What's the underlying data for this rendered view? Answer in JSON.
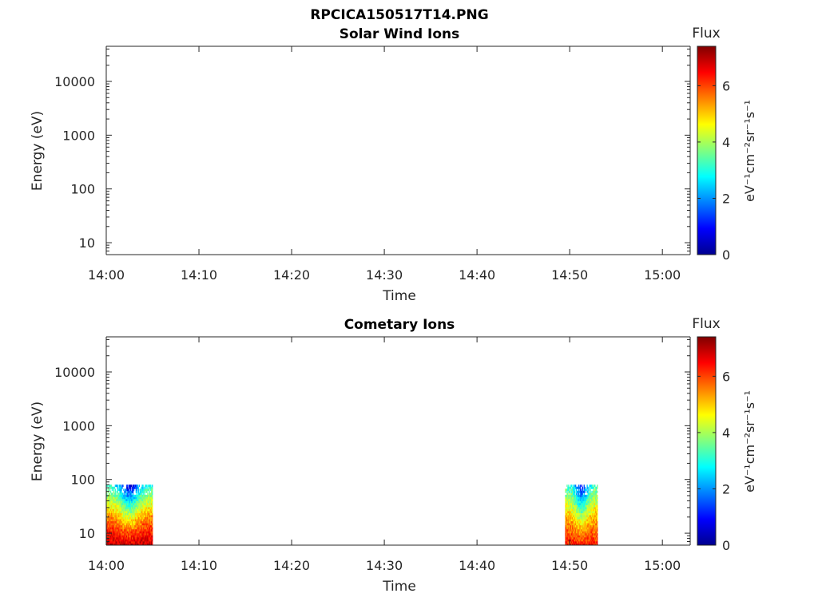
{
  "figure_title": "RPCICA150517T14.PNG",
  "chart_data": [
    {
      "type": "heatmap",
      "title": "Solar Wind Ions",
      "xlabel": "Time",
      "ylabel": "Energy (eV)",
      "x_range": [
        "14:00",
        "15:03"
      ],
      "x_ticks": [
        "14:00",
        "14:10",
        "14:20",
        "14:30",
        "14:40",
        "14:50",
        "15:00"
      ],
      "y_scale": "log",
      "y_range": [
        6,
        45000
      ],
      "y_ticks": [
        "10",
        "100",
        "1000",
        "10000"
      ],
      "colorbar": {
        "label": "Flux",
        "unit_label": "eV⁻¹cm⁻²sr⁻¹s⁻¹",
        "range": [
          0,
          7.4
        ],
        "ticks": [
          "0",
          "2",
          "4",
          "6"
        ]
      },
      "regions": []
    },
    {
      "type": "heatmap",
      "title": "Cometary Ions",
      "xlabel": "Time",
      "ylabel": "Energy (eV)",
      "x_range": [
        "14:00",
        "15:03"
      ],
      "x_ticks": [
        "14:00",
        "14:10",
        "14:20",
        "14:30",
        "14:40",
        "14:50",
        "15:00"
      ],
      "y_scale": "log",
      "y_range": [
        6,
        45000
      ],
      "y_ticks": [
        "10",
        "100",
        "1000",
        "10000"
      ],
      "colorbar": {
        "label": "Flux",
        "unit_label": "eV⁻¹cm⁻²sr⁻¹s⁻¹",
        "range": [
          0,
          7.4
        ],
        "ticks": [
          "0",
          "2",
          "4",
          "6"
        ]
      },
      "regions": [
        {
          "t_start": "14:00",
          "t_end": "14:05",
          "e_min": 6,
          "e_max": 80,
          "flux_low_energy": 6.8,
          "flux_high_energy": 3.0
        },
        {
          "t_start": "14:49.5",
          "t_end": "14:53",
          "e_min": 6,
          "e_max": 80,
          "flux_low_energy": 6.2,
          "flux_high_energy": 3.2
        }
      ]
    }
  ]
}
